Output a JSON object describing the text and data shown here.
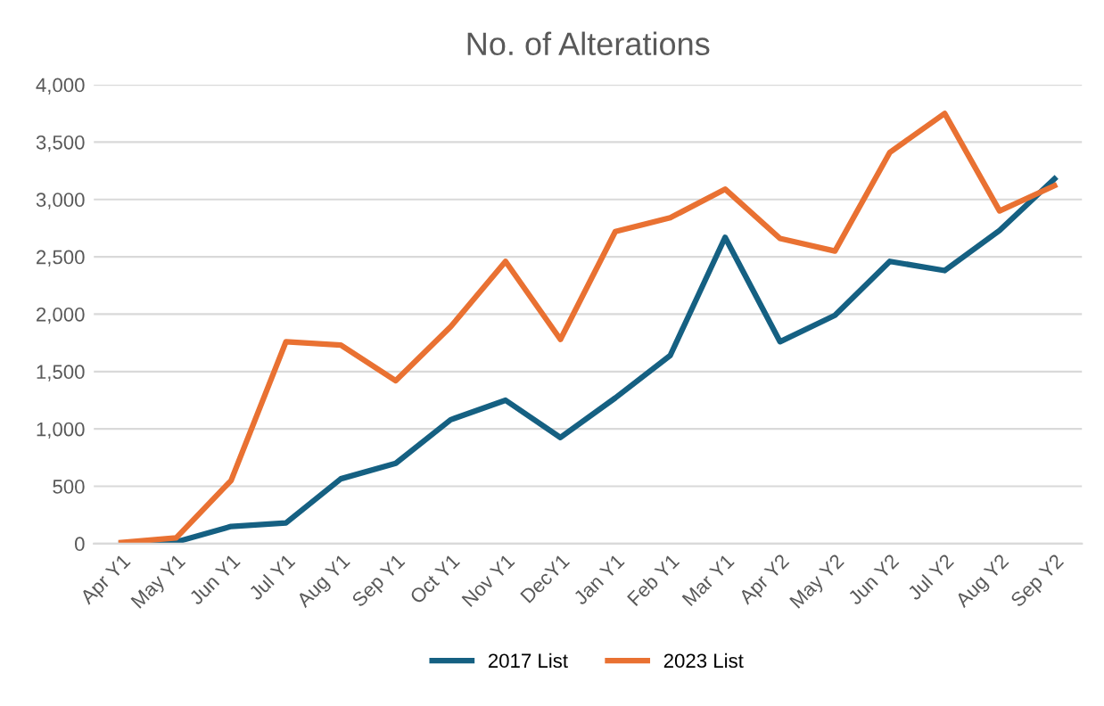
{
  "chart_data": {
    "type": "line",
    "title": "No. of Alterations",
    "categories": [
      "Apr Y1",
      "May Y1",
      "Jun Y1",
      "Jul Y1",
      "Aug Y1",
      "Sep Y1",
      "Oct Y1",
      "Nov Y1",
      "DecY1",
      "Jan Y1",
      "Feb Y1",
      "Mar Y1",
      "Apr Y2",
      "May Y2",
      "Jun Y2",
      "Jul Y2",
      "Aug Y2",
      "Sep Y2"
    ],
    "series": [
      {
        "name": "2017 List",
        "color": "#156082",
        "values": [
          0,
          15,
          150,
          180,
          565,
          700,
          1080,
          1250,
          925,
          1270,
          1640,
          2670,
          1760,
          1990,
          2460,
          2380,
          2730,
          3180
        ]
      },
      {
        "name": "2023 List",
        "color": "#e97132",
        "values": [
          10,
          50,
          550,
          1760,
          1730,
          1420,
          1890,
          2460,
          1780,
          2720,
          2840,
          3090,
          2660,
          2550,
          3410,
          3750,
          2900,
          3120
        ]
      }
    ],
    "ylim": [
      0,
      4000
    ],
    "yticks": [
      {
        "value": 0,
        "label": "0"
      },
      {
        "value": 500,
        "label": "500"
      },
      {
        "value": 1000,
        "label": "1,000"
      },
      {
        "value": 1500,
        "label": "1,500"
      },
      {
        "value": 2000,
        "label": "2,000"
      },
      {
        "value": 2500,
        "label": "2,500"
      },
      {
        "value": 3000,
        "label": "3,000"
      },
      {
        "value": 3500,
        "label": "3,500"
      },
      {
        "value": 4000,
        "label": "4,000"
      }
    ],
    "grid": "y",
    "legend": "bottom",
    "marker": "none",
    "line_style": "solid"
  }
}
